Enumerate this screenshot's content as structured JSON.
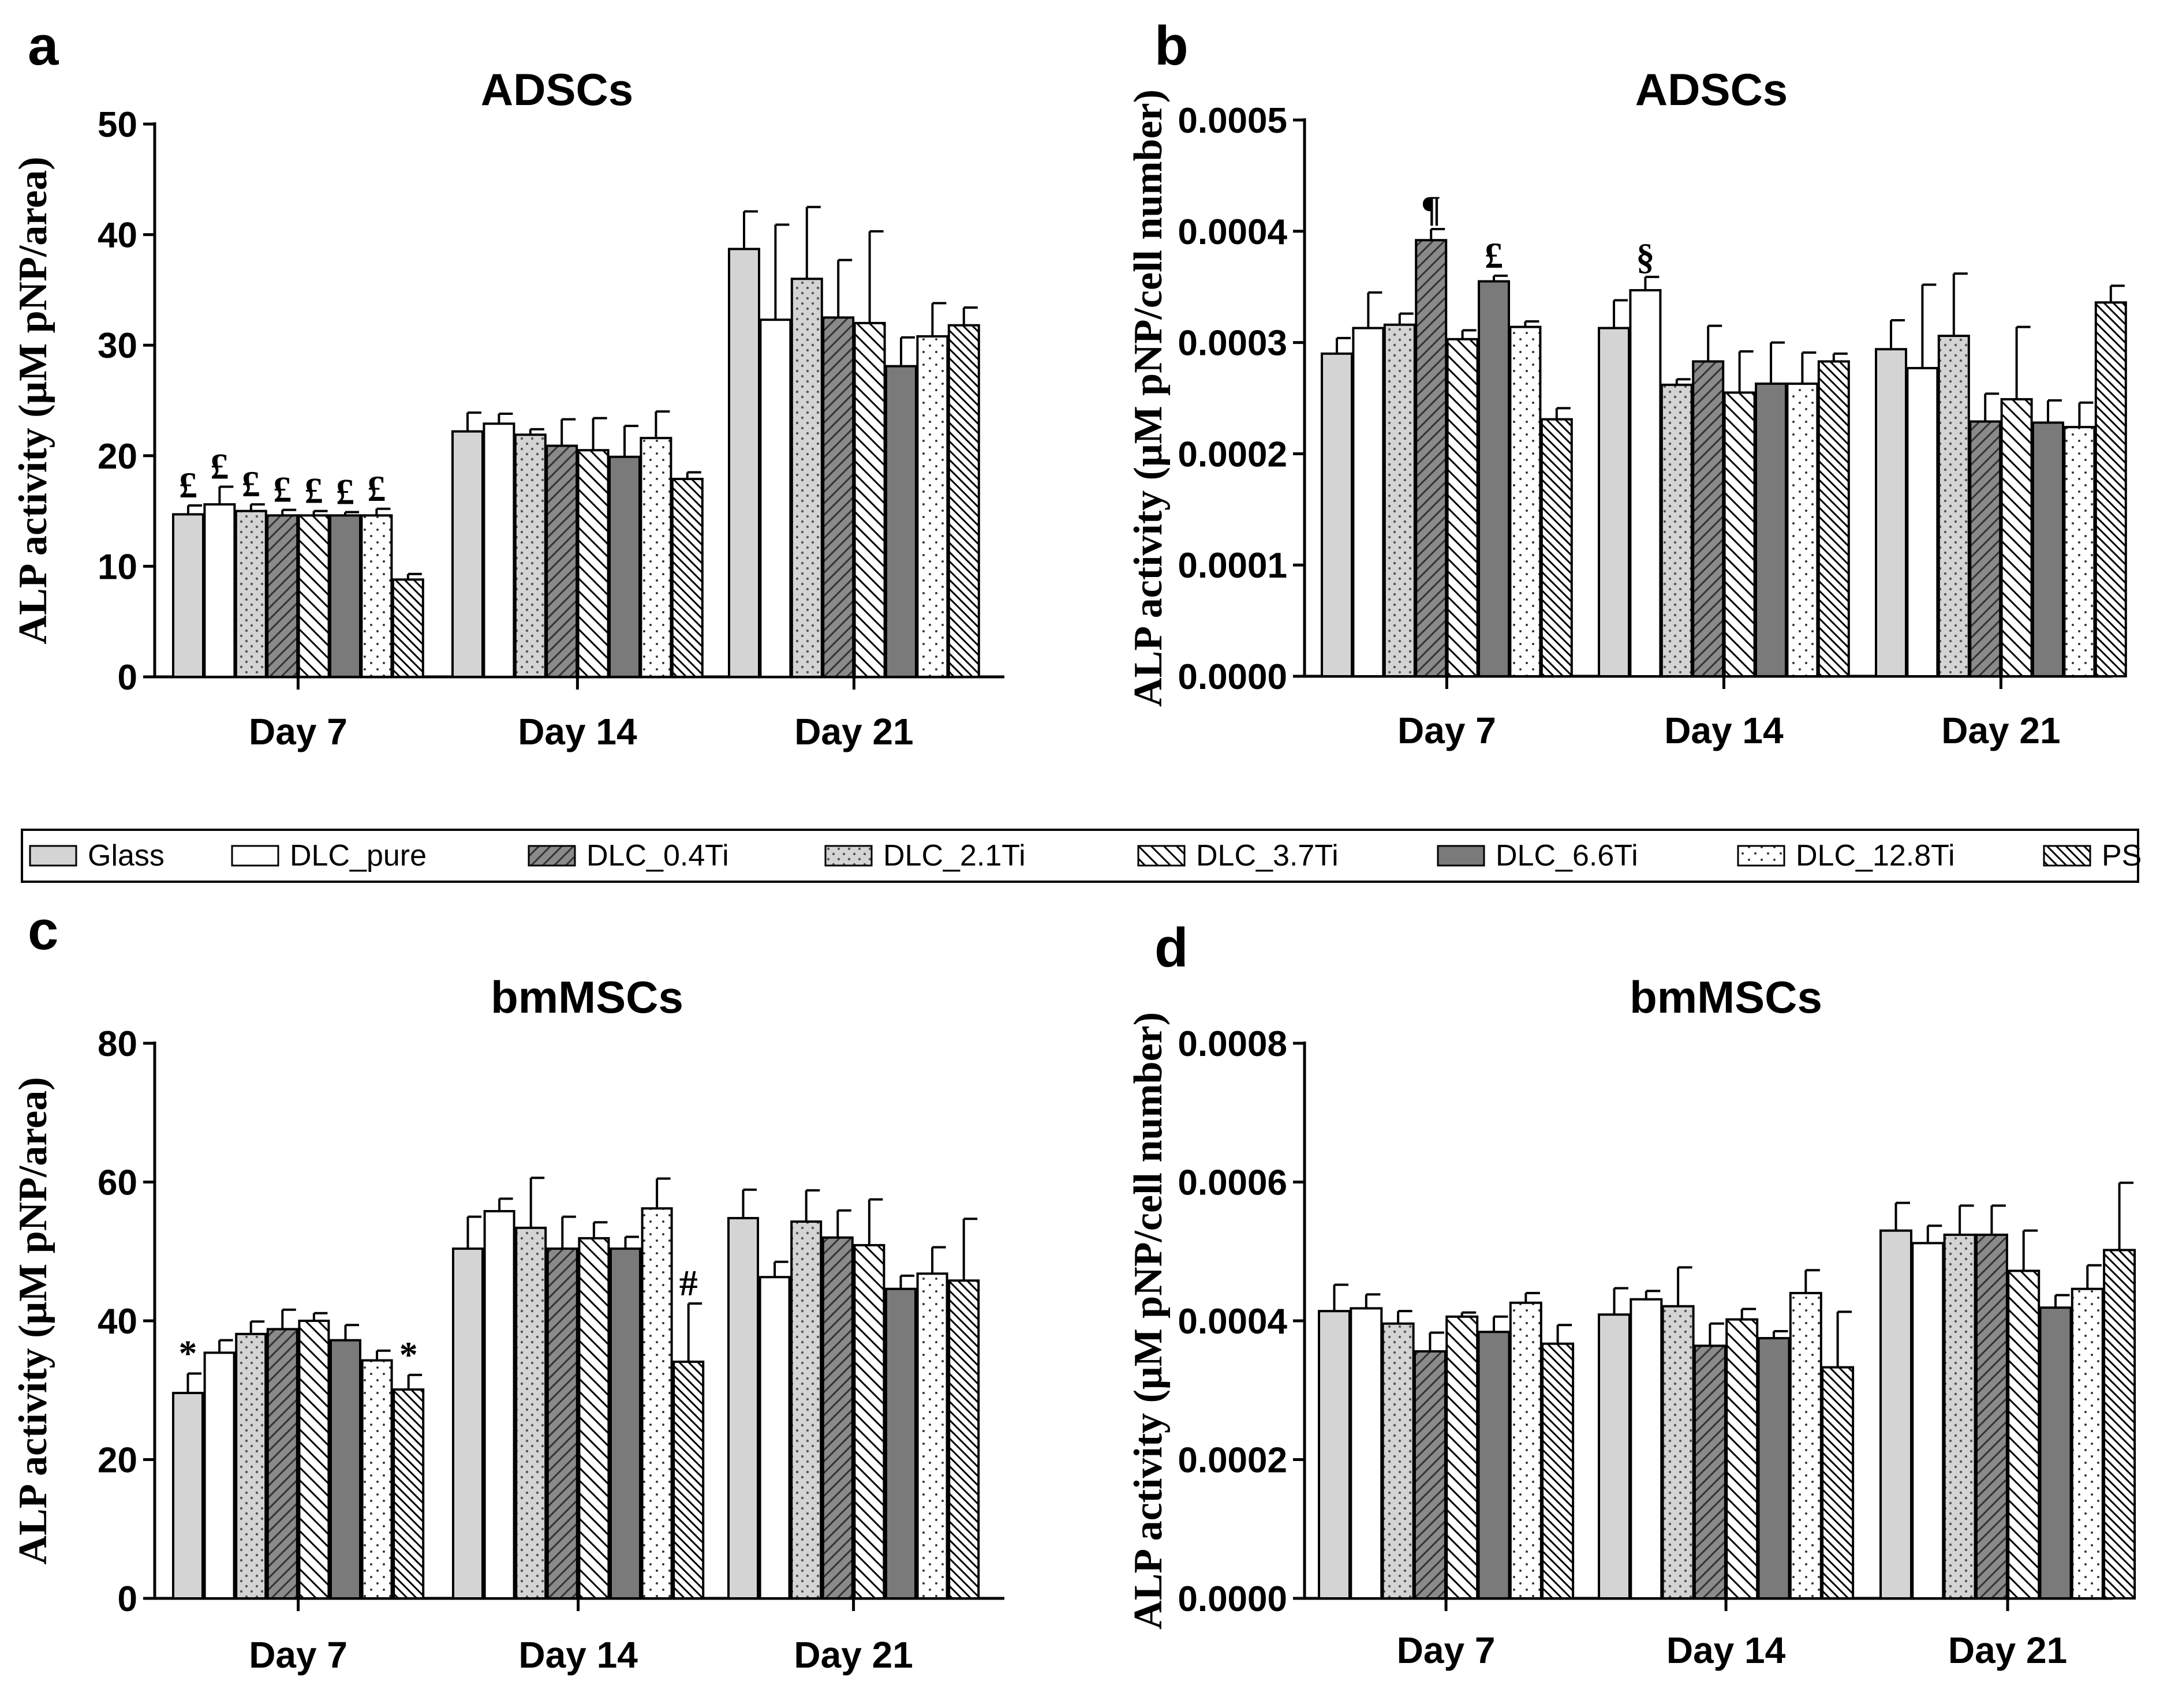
{
  "legend": {
    "items": [
      {
        "label": "Glass",
        "pattern": "glass"
      },
      {
        "label": "DLC_pure",
        "pattern": "pure"
      },
      {
        "label": "DLC_0.4Ti",
        "pattern": "t04"
      },
      {
        "label": "DLC_2.1Ti",
        "pattern": "t21"
      },
      {
        "label": "DLC_3.7Ti",
        "pattern": "t37"
      },
      {
        "label": "DLC_6.6Ti",
        "pattern": "t66"
      },
      {
        "label": "DLC_12.8Ti",
        "pattern": "t128"
      },
      {
        "label": "PS",
        "pattern": "ps"
      }
    ]
  },
  "chart_data": [
    {
      "panel": "a",
      "type": "bar",
      "title": "ADSCs",
      "ylabel": "ALP activity (μM pNP/area)",
      "ylim": [
        0,
        50
      ],
      "yticks": [
        "0",
        "10",
        "20",
        "30",
        "40",
        "50"
      ],
      "categories": [
        "Day 7",
        "Day 14",
        "Day 21"
      ],
      "series_patterns": [
        "glass",
        "pure",
        "t21",
        "t04",
        "t37",
        "t66",
        "t128",
        "ps"
      ],
      "series_names": [
        "Glass",
        "DLC_pure",
        "DLC_2.1Ti",
        "DLC_0.4Ti",
        "DLC_3.7Ti",
        "DLC_6.6Ti",
        "DLC_12.8Ti",
        "PS"
      ],
      "values": [
        [
          14.7,
          15.6,
          15.0,
          14.6,
          14.6,
          14.6,
          14.6,
          8.8
        ],
        [
          22.2,
          22.9,
          21.9,
          20.9,
          20.5,
          19.9,
          21.6,
          17.9
        ],
        [
          38.7,
          32.3,
          36.0,
          32.5,
          32.0,
          28.1,
          30.8,
          31.8
        ]
      ],
      "errors": [
        [
          0.8,
          1.6,
          0.6,
          0.5,
          0.4,
          0.3,
          0.6,
          0.5
        ],
        [
          1.7,
          0.9,
          0.5,
          2.4,
          2.9,
          2.8,
          2.4,
          0.6
        ],
        [
          3.4,
          8.6,
          6.5,
          5.2,
          8.3,
          2.6,
          3.0,
          1.6
        ]
      ],
      "annotations": [
        {
          "category": 0,
          "series": 0,
          "text": "£"
        },
        {
          "category": 0,
          "series": 1,
          "text": "£"
        },
        {
          "category": 0,
          "series": 2,
          "text": "£"
        },
        {
          "category": 0,
          "series": 3,
          "text": "£"
        },
        {
          "category": 0,
          "series": 4,
          "text": "£"
        },
        {
          "category": 0,
          "series": 5,
          "text": "£"
        },
        {
          "category": 0,
          "series": 6,
          "text": "£"
        }
      ]
    },
    {
      "panel": "b",
      "type": "bar",
      "title": "ADSCs",
      "ylabel": "ALP activity (μM pNP/cell number)",
      "ylim": [
        0,
        0.0005
      ],
      "yticks": [
        "0.0000",
        "0.0001",
        "0.0002",
        "0.0003",
        "0.0004",
        "0.0005"
      ],
      "categories": [
        "Day 7",
        "Day 14",
        "Day 21"
      ],
      "series_patterns": [
        "glass",
        "pure",
        "t21",
        "t04",
        "t37",
        "t66",
        "t128",
        "ps"
      ],
      "series_names": [
        "Glass",
        "DLC_pure",
        "DLC_2.1Ti",
        "DLC_0.4Ti",
        "DLC_3.7Ti",
        "DLC_6.6Ti",
        "DLC_12.8Ti",
        "PS"
      ],
      "values": [
        [
          0.00029,
          0.000313,
          0.000316,
          0.000392,
          0.000303,
          0.000355,
          0.000314,
          0.000231
        ],
        [
          0.000313,
          0.000347,
          0.000262,
          0.000283,
          0.000255,
          0.000263,
          0.000263,
          0.000283
        ],
        [
          0.000294,
          0.000277,
          0.000306,
          0.000229,
          0.000249,
          0.000228,
          0.000224,
          0.000336
        ]
      ],
      "errors": [
        [
          1.4e-05,
          3.2e-05,
          1e-05,
          1e-05,
          8e-06,
          5e-06,
          5e-06,
          1e-05
        ],
        [
          2.5e-05,
          1.2e-05,
          5e-06,
          3.2e-05,
          3.7e-05,
          3.7e-05,
          2.8e-05,
          7e-06
        ],
        [
          2.6e-05,
          7.5e-05,
          5.6e-05,
          2.5e-05,
          6.5e-05,
          2e-05,
          2.2e-05,
          1.5e-05
        ]
      ],
      "annotations": [
        {
          "category": 0,
          "series": 3,
          "text": "¶"
        },
        {
          "category": 0,
          "series": 5,
          "text": "£"
        },
        {
          "category": 1,
          "series": 1,
          "text": "§"
        }
      ]
    },
    {
      "panel": "c",
      "type": "bar",
      "title": "bmMSCs",
      "ylabel": "ALP activity (μM pNP/area)",
      "ylim": [
        0,
        80
      ],
      "yticks": [
        "0",
        "20",
        "40",
        "60",
        "80"
      ],
      "categories": [
        "Day 7",
        "Day 14",
        "Day 21"
      ],
      "series_patterns": [
        "glass",
        "pure",
        "t21",
        "t04",
        "t37",
        "t66",
        "t128",
        "ps"
      ],
      "series_names": [
        "Glass",
        "DLC_pure",
        "DLC_2.1Ti",
        "DLC_0.4Ti",
        "DLC_3.7Ti",
        "DLC_6.6Ti",
        "DLC_12.8Ti",
        "PS"
      ],
      "values": [
        [
          29.6,
          35.4,
          38.1,
          38.8,
          40.0,
          37.2,
          34.3,
          30.1
        ],
        [
          50.4,
          55.8,
          53.4,
          50.4,
          51.9,
          50.4,
          56.2,
          34.1
        ],
        [
          54.8,
          46.3,
          54.3,
          52.0,
          50.9,
          44.6,
          46.8,
          45.8
        ]
      ],
      "errors": [
        [
          2.8,
          1.8,
          1.8,
          2.8,
          1.1,
          2.2,
          1.4,
          2.1
        ],
        [
          4.6,
          1.8,
          7.2,
          4.6,
          2.3,
          1.7,
          4.3,
          8.4
        ],
        [
          4.1,
          2.2,
          4.5,
          3.9,
          6.6,
          1.9,
          3.8,
          8.9
        ]
      ],
      "annotations": [
        {
          "category": 0,
          "series": 0,
          "text": "*"
        },
        {
          "category": 0,
          "series": 7,
          "text": "*"
        },
        {
          "category": 1,
          "series": 7,
          "text": "#"
        }
      ]
    },
    {
      "panel": "d",
      "type": "bar",
      "title": "bmMSCs",
      "ylabel": "ALP activity (μM pNP/cell number)",
      "ylim": [
        0,
        0.0008
      ],
      "yticks": [
        "0.0000",
        "0.0002",
        "0.0004",
        "0.0006",
        "0.0008"
      ],
      "categories": [
        "Day 7",
        "Day 14",
        "Day 21"
      ],
      "series_patterns": [
        "glass",
        "pure",
        "t21",
        "t04",
        "t37",
        "t66",
        "t128",
        "ps"
      ],
      "series_names": [
        "Glass",
        "DLC_pure",
        "DLC_2.1Ti",
        "DLC_0.4Ti",
        "DLC_3.7Ti",
        "DLC_6.6Ti",
        "DLC_12.8Ti",
        "PS"
      ],
      "values": [
        [
          0.000414,
          0.000418,
          0.000396,
          0.000356,
          0.000406,
          0.000384,
          0.000426,
          0.000367
        ],
        [
          0.000409,
          0.000431,
          0.000421,
          0.000364,
          0.000402,
          0.000375,
          0.00044,
          0.000333
        ],
        [
          0.00053,
          0.000512,
          0.000524,
          0.000524,
          0.000472,
          0.000419,
          0.000446,
          0.000502
        ]
      ],
      "errors": [
        [
          3.8e-05,
          2e-05,
          1.8e-05,
          2.7e-05,
          6e-06,
          2.2e-05,
          1.4e-05,
          2.7e-05
        ],
        [
          3.8e-05,
          1.2e-05,
          5.6e-05,
          3.2e-05,
          1.5e-05,
          1e-05,
          3.3e-05,
          8e-05
        ],
        [
          4e-05,
          2.5e-05,
          4.2e-05,
          4.2e-05,
          5.8e-05,
          1.8e-05,
          3.4e-05,
          9.7e-05
        ]
      ],
      "annotations": []
    }
  ]
}
